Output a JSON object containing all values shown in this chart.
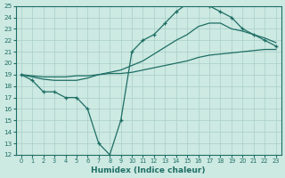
{
  "xlabel": "Humidex (Indice chaleur)",
  "xlim": [
    -0.5,
    23.5
  ],
  "ylim": [
    12,
    25
  ],
  "xticks": [
    0,
    1,
    2,
    3,
    4,
    5,
    6,
    7,
    8,
    9,
    10,
    11,
    12,
    13,
    14,
    15,
    16,
    17,
    18,
    19,
    20,
    21,
    22,
    23
  ],
  "yticks": [
    12,
    13,
    14,
    15,
    16,
    17,
    18,
    19,
    20,
    21,
    22,
    23,
    24,
    25
  ],
  "bg_color": "#cce9e2",
  "line_color": "#1e6e64",
  "grid_color": "#a8cfc8",
  "line1_x": [
    0,
    1,
    2,
    3,
    4,
    5,
    6,
    7,
    8,
    9,
    10,
    11,
    12,
    13,
    14,
    15,
    16,
    17,
    18,
    19,
    20,
    21,
    22,
    23
  ],
  "line1_y": [
    19.0,
    18.5,
    17.5,
    17.5,
    17.0,
    17.0,
    16.0,
    13.0,
    12.0,
    15.0,
    21.0,
    22.0,
    22.5,
    23.5,
    24.5,
    25.2,
    25.5,
    25.0,
    24.5,
    24.0,
    23.0,
    22.5,
    22.0,
    21.5
  ],
  "line2_x": [
    0,
    1,
    2,
    3,
    4,
    5,
    6,
    7,
    8,
    9,
    10,
    11,
    12,
    13,
    14,
    15,
    16,
    17,
    18,
    19,
    20,
    21,
    22,
    23
  ],
  "line2_y": [
    19.0,
    18.8,
    18.6,
    18.5,
    18.5,
    18.5,
    18.7,
    19.0,
    19.2,
    19.4,
    19.8,
    20.2,
    20.8,
    21.4,
    22.0,
    22.5,
    23.2,
    23.5,
    23.5,
    23.0,
    22.8,
    22.5,
    22.2,
    21.8
  ],
  "line3_x": [
    0,
    1,
    2,
    3,
    4,
    5,
    6,
    7,
    8,
    9,
    10,
    11,
    12,
    13,
    14,
    15,
    16,
    17,
    18,
    19,
    20,
    21,
    22,
    23
  ],
  "line3_y": [
    19.0,
    18.9,
    18.8,
    18.8,
    18.8,
    18.9,
    18.9,
    19.0,
    19.1,
    19.1,
    19.2,
    19.4,
    19.6,
    19.8,
    20.0,
    20.2,
    20.5,
    20.7,
    20.8,
    20.9,
    21.0,
    21.1,
    21.2,
    21.2
  ]
}
